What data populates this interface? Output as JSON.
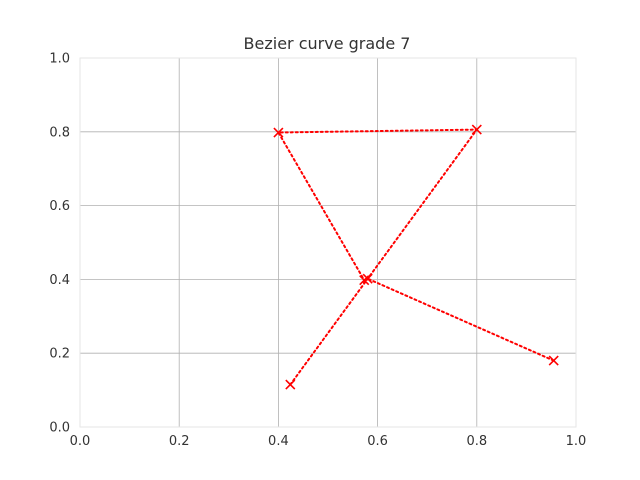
{
  "chart_data": {
    "type": "scatter",
    "title": "Bezier curve grade 7",
    "xlabel": "",
    "ylabel": "",
    "xlim": [
      0.0,
      1.0
    ],
    "ylim": [
      0.0,
      1.0
    ],
    "grid": true,
    "legend": "none",
    "x_ticks": [
      "0.0",
      "0.2",
      "0.4",
      "0.6",
      "0.8",
      "1.0"
    ],
    "y_ticks": [
      "0.0",
      "0.2",
      "0.4",
      "0.6",
      "0.8",
      "1.0"
    ],
    "series": [
      {
        "marker": "x",
        "line_style": "dotted",
        "color": "#ff0000",
        "points": [
          {
            "x": 0.424,
            "y": 0.115
          },
          {
            "x": 0.8,
            "y": 0.806
          },
          {
            "x": 0.4,
            "y": 0.798
          },
          {
            "x": 0.573,
            "y": 0.398
          },
          {
            "x": 0.58,
            "y": 0.402
          },
          {
            "x": 0.955,
            "y": 0.18
          }
        ]
      }
    ]
  }
}
